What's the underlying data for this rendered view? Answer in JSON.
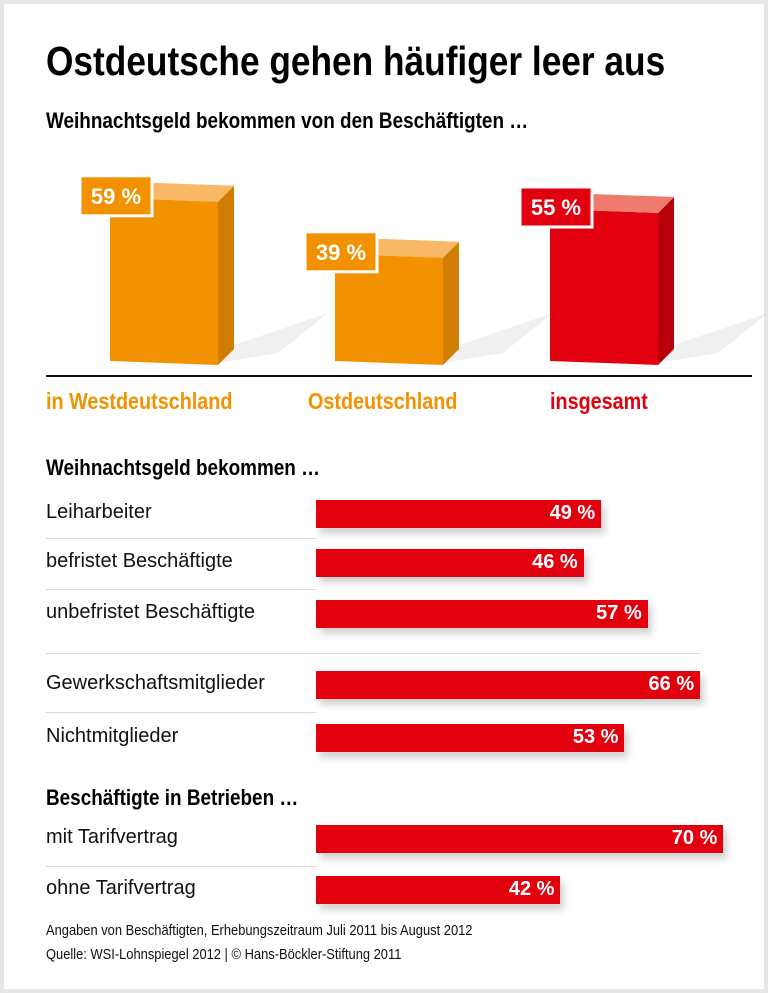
{
  "title": "Ostdeutsche gehen häufiger leer aus",
  "chart_data": [
    {
      "type": "bar",
      "title": "Weihnachtsgeld bekommen von den Beschäftigten …",
      "categories": [
        "in Westdeutschland",
        "Ostdeutschland",
        "insgesamt"
      ],
      "values": [
        59,
        39,
        55
      ],
      "value_labels": [
        "59 %",
        "39 %",
        "55 %"
      ],
      "colors": [
        "#f39200",
        "#f39200",
        "#e2000f"
      ],
      "unit": "%"
    },
    {
      "type": "bar",
      "orientation": "horizontal",
      "title": "Weihnachtsgeld bekommen …",
      "categories": [
        "Leiharbeiter",
        "befristet Beschäftigte",
        "unbefristet Beschäftigte",
        "Gewerkschaftsmitglieder",
        "Nichtmitglieder"
      ],
      "values": [
        49,
        46,
        57,
        66,
        53
      ],
      "value_labels": [
        "49 %",
        "46 %",
        "57 %",
        "66 %",
        "53 %"
      ],
      "color": "#e2000f",
      "unit": "%"
    },
    {
      "type": "bar",
      "orientation": "horizontal",
      "title": "Beschäftigte in Betrieben …",
      "categories": [
        "mit Tarifvertrag",
        "ohne Tarifvertrag"
      ],
      "values": [
        70,
        42
      ],
      "value_labels": [
        "70 %",
        "42 %"
      ],
      "color": "#e2000f",
      "unit": "%"
    }
  ],
  "footer": {
    "note": "Angaben von Beschäftigten, Erhebungszeitraum Juli 2011 bis August 2012",
    "source": "Quelle: WSI-Lohnspiegel 2012 | © Hans-Böckler-Stiftung 2011"
  }
}
